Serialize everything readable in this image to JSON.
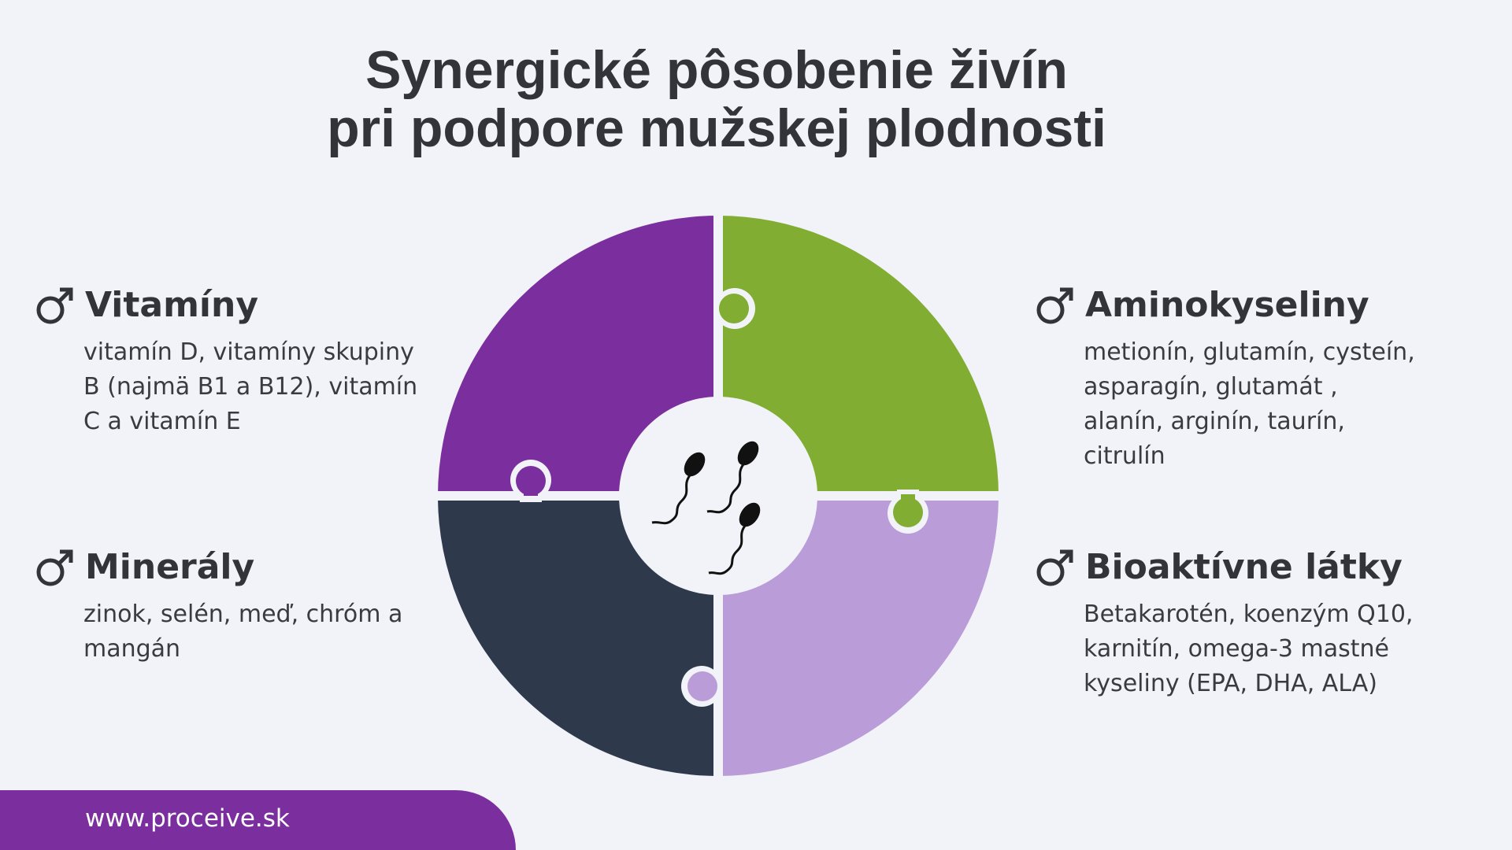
{
  "title": {
    "line1": "Synergické pôsobenie živín",
    "line2": "pri podpore mužskej plodnosti"
  },
  "categories": [
    {
      "id": "vitaminy",
      "heading": "Vitamíny",
      "text": "vitamín D, vitamíny skupiny B (najmä B1 a B12), vitamín C a vitamín E",
      "color": "#7b2e9e",
      "icon": "male-symbol-icon"
    },
    {
      "id": "aminokyseliny",
      "heading": "Aminokyseliny",
      "text": "metionín, glutamín, cysteín, asparagín, glutamát , alanín, arginín, taurín, citrulín",
      "color": "#80ad32",
      "icon": "male-symbol-icon"
    },
    {
      "id": "mineraly",
      "heading": "Minerály",
      "text": "zinok, selén, meď, chróm a mangán",
      "color": "#2e3a4b",
      "icon": "male-symbol-icon"
    },
    {
      "id": "bioaktivne",
      "heading": "Bioaktívne látky",
      "text": "Betakarotén, koenzým Q10, karnitín, omega-3 mastné kyseliny (EPA, DHA, ALA)",
      "color": "#b99cd8",
      "icon": "male-symbol-icon"
    }
  ],
  "center_icon": "sperm-cells-icon",
  "footer": {
    "url": "www.proceive.sk",
    "color": "#7b2e9e"
  }
}
